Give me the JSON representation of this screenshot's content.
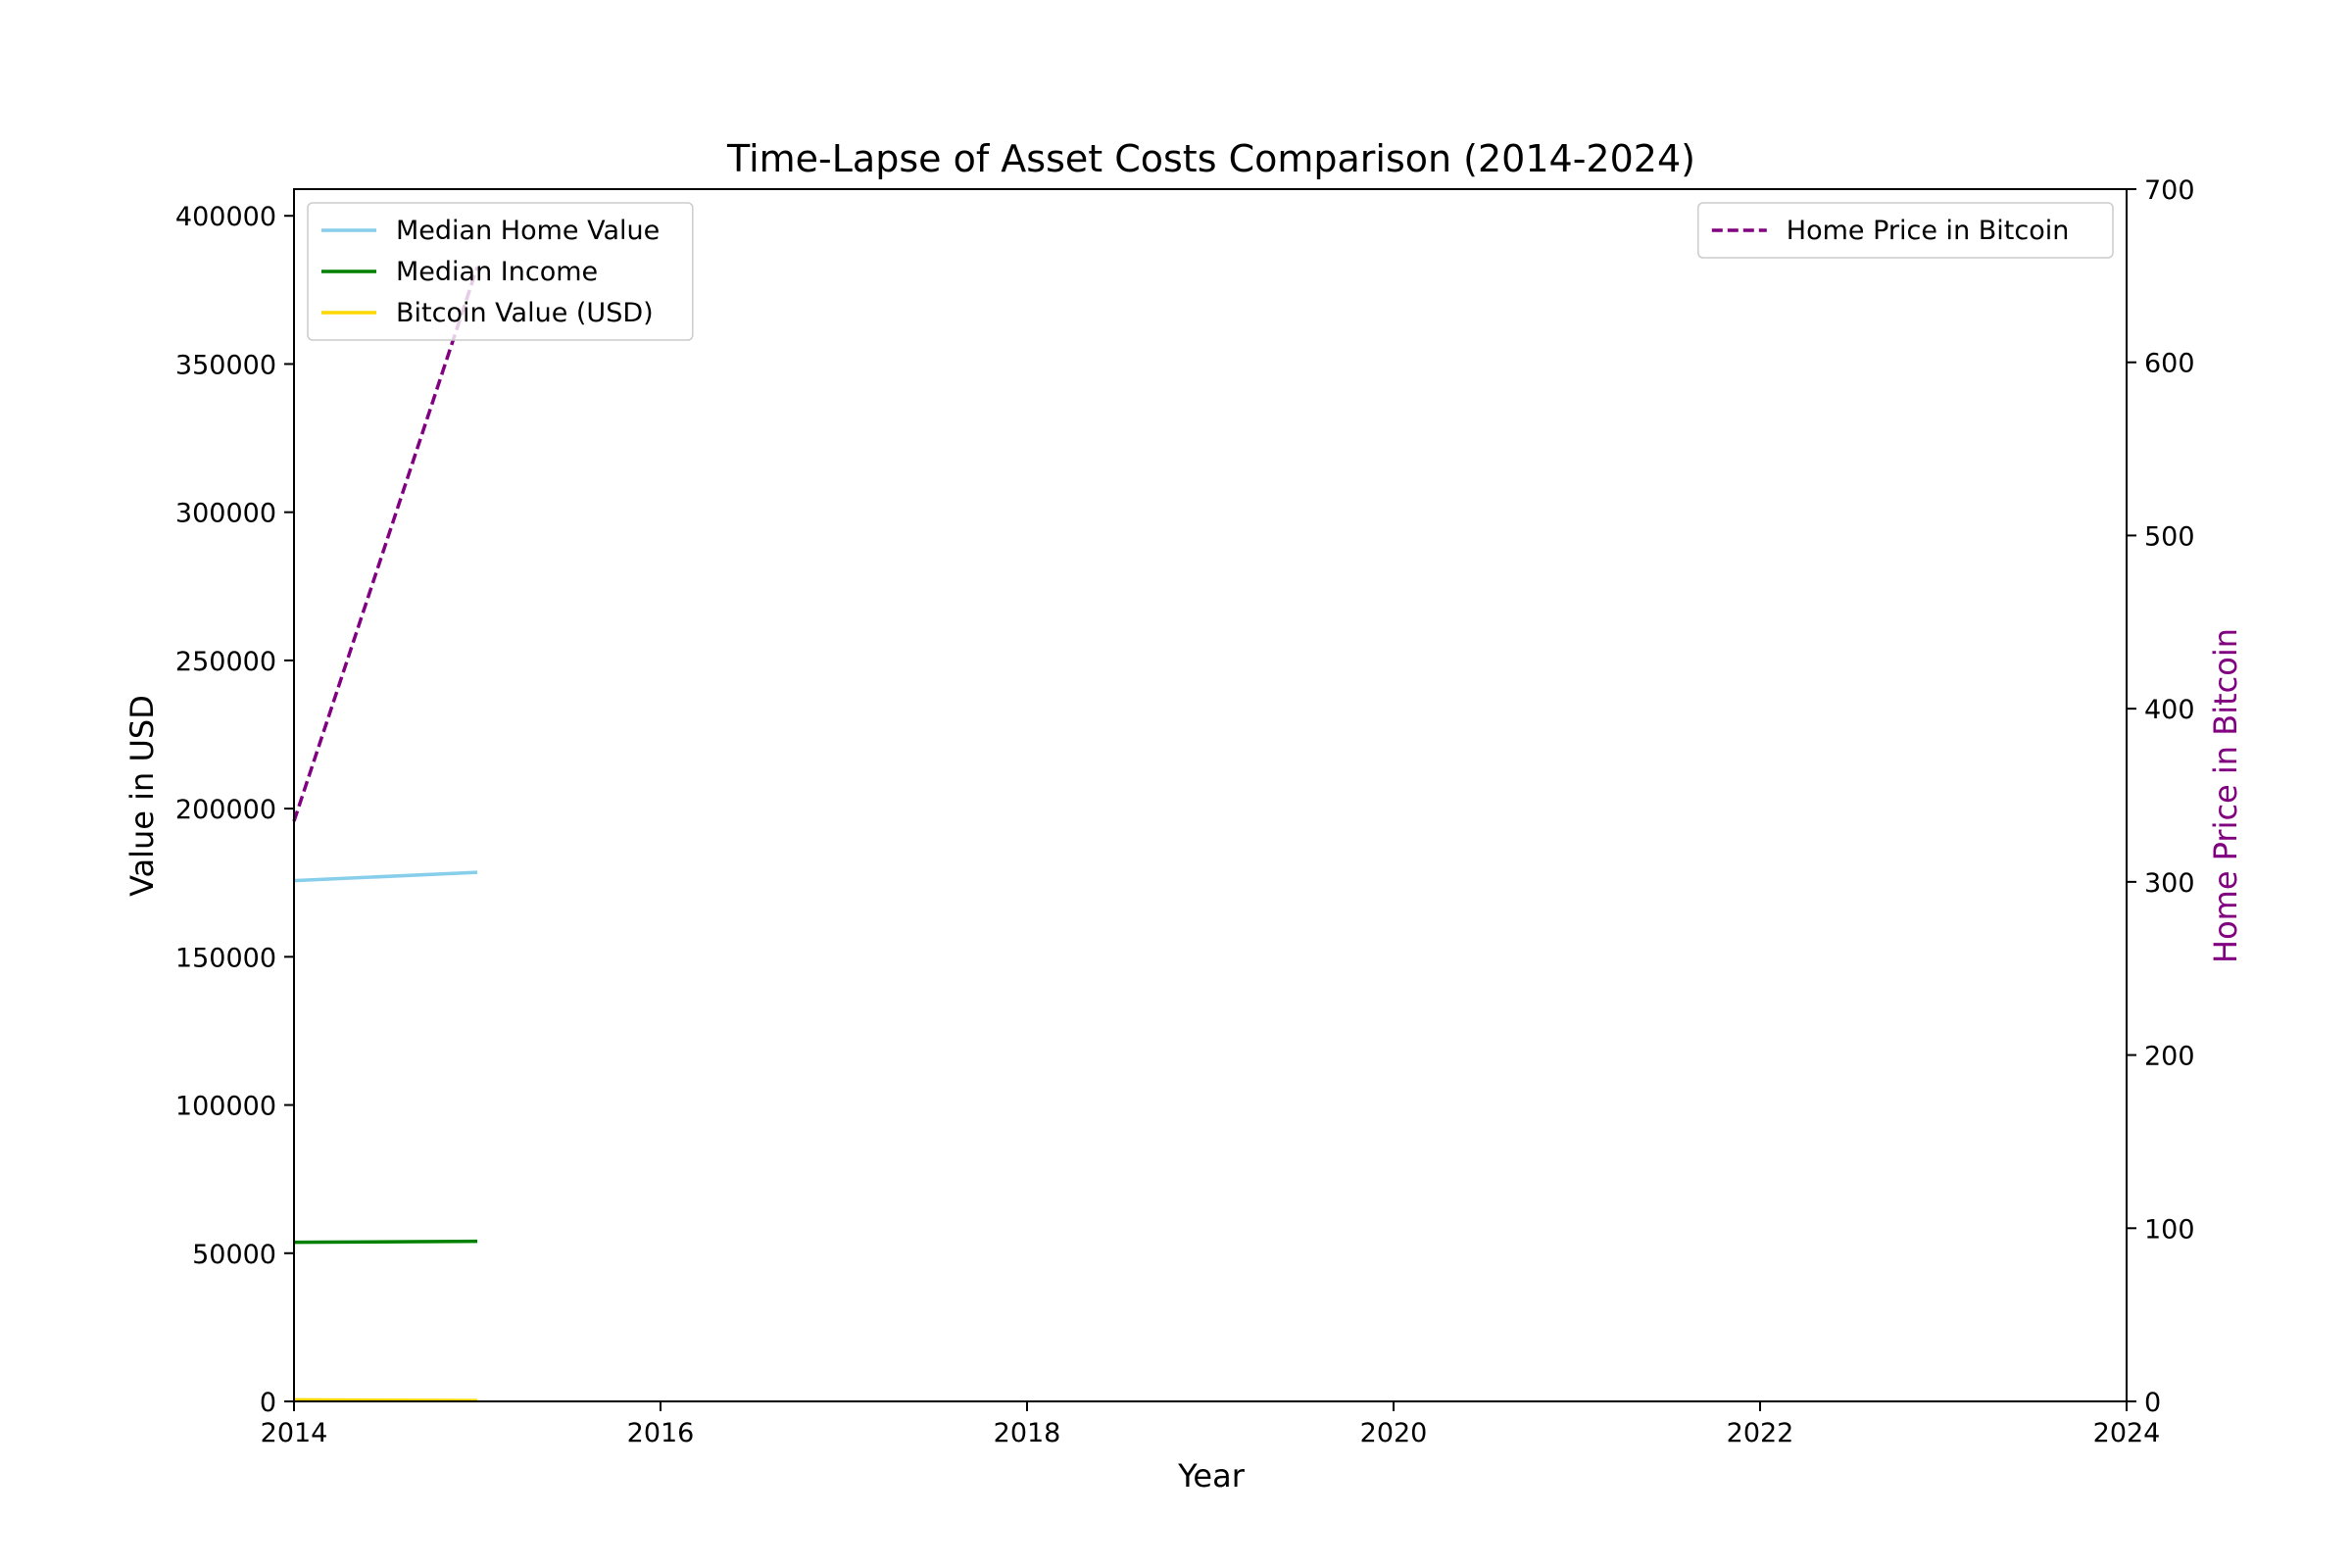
{
  "chart_data": {
    "type": "line",
    "title": "Time-Lapse of Asset Costs Comparison (2014-2024)",
    "xlabel": "Year",
    "ylabel": "Value in USD",
    "y2label": "Home Price in Bitcoin",
    "xlim": [
      2014,
      2024
    ],
    "ylim": [
      0,
      409000
    ],
    "y2lim": [
      0,
      700
    ],
    "x_ticks": [
      "2014",
      "2016",
      "2018",
      "2020",
      "2022",
      "2024"
    ],
    "y_ticks": [
      "0",
      "50000",
      "100000",
      "150000",
      "200000",
      "250000",
      "300000",
      "350000",
      "400000"
    ],
    "y2_ticks": [
      "0",
      "100",
      "200",
      "300",
      "400",
      "500",
      "600",
      "700"
    ],
    "grid": false,
    "legend_left_position": "upper-left",
    "legend_right_position": "upper-right",
    "series": [
      {
        "name": "Median Home Value",
        "axis": "left",
        "color": "#87ceeb",
        "dash": "solid",
        "x": [
          2014,
          2015
        ],
        "y": [
          175700,
          178500
        ]
      },
      {
        "name": "Median Income",
        "axis": "left",
        "color": "#008000",
        "dash": "solid",
        "x": [
          2014,
          2015
        ],
        "y": [
          53700,
          54000
        ]
      },
      {
        "name": "Bitcoin Value (USD)",
        "axis": "left",
        "color": "#ffd700",
        "dash": "solid",
        "x": [
          2014,
          2015
        ],
        "y": [
          530,
          270
        ]
      },
      {
        "name": "Home Price in Bitcoin",
        "axis": "right",
        "color": "#800080",
        "dash": "dashed",
        "x": [
          2014,
          2015
        ],
        "y": [
          335,
          655
        ]
      }
    ]
  }
}
